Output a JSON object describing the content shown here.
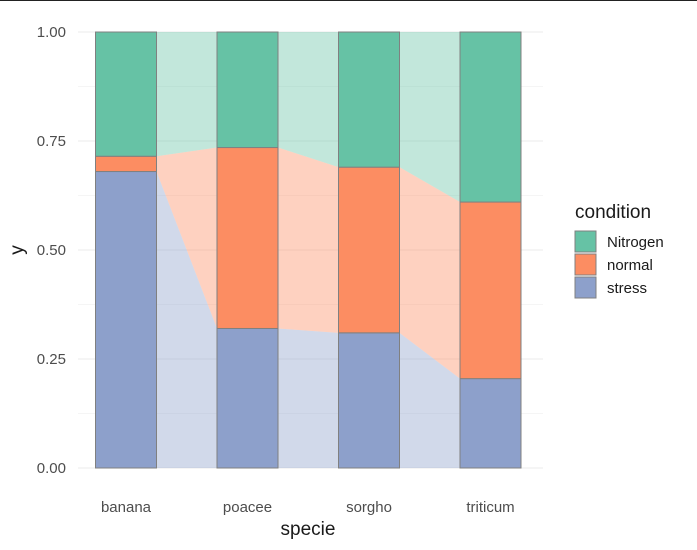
{
  "chart_data": {
    "type": "bar",
    "stacked": true,
    "normalized": true,
    "categories": [
      "banana",
      "poacee",
      "sorgho",
      "triticum"
    ],
    "series": [
      {
        "name": "stress",
        "values": [
          0.68,
          0.32,
          0.31,
          0.205
        ],
        "color": "#8DA0CB"
      },
      {
        "name": "normal",
        "values": [
          0.035,
          0.415,
          0.38,
          0.405
        ],
        "color": "#FC8D62"
      },
      {
        "name": "Nitrogen",
        "values": [
          0.285,
          0.265,
          0.31,
          0.39
        ],
        "color": "#66C2A5"
      }
    ],
    "alluvium_fill_opacity": 0.4,
    "bar_outline_color": "#808080",
    "xlabel": "specie",
    "ylabel": "y",
    "ylim": [
      0,
      1
    ],
    "yticks": [
      "0.00",
      "0.25",
      "0.50",
      "0.75",
      "1.00"
    ],
    "ytick_values": [
      0,
      0.25,
      0.5,
      0.75,
      1
    ],
    "grid": true,
    "grid_color": "#EBEBEB",
    "legend": {
      "title": "condition",
      "position": "right",
      "entries": [
        "Nitrogen",
        "normal",
        "stress"
      ]
    }
  }
}
